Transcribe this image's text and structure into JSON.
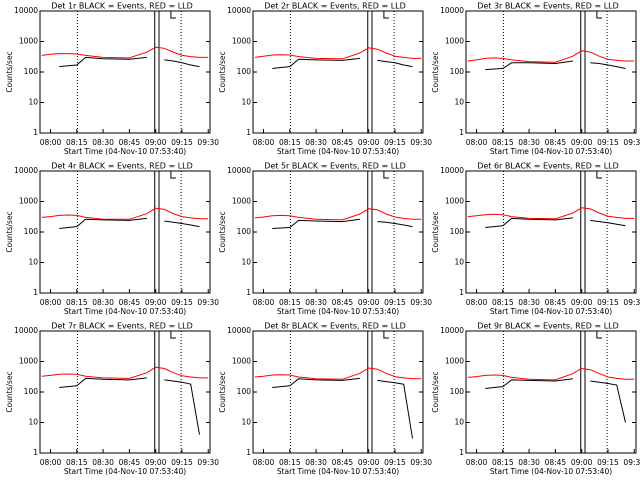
{
  "chart_data": [
    {
      "type": "line",
      "title": "Det 1r BLACK = Events, RED = LLD",
      "xlabel": "Start Time (04-Nov-10 07:53:40)",
      "ylabel": "Counts/sec",
      "log_y": true,
      "x": [
        "07:55",
        "08:00",
        "08:05",
        "08:10",
        "08:15",
        "08:20",
        "08:30",
        "08:45",
        "08:55",
        "09:00",
        "09:05",
        "09:10",
        "09:15",
        "09:20",
        "09:25",
        "09:30"
      ],
      "xlim": [
        "07:54",
        "09:31"
      ],
      "xticks": [
        "08:00",
        "08:15",
        "08:30",
        "08:45",
        "09:00",
        "09:15",
        "09:30"
      ],
      "ylim": [
        1,
        10000
      ],
      "yticks": [
        1,
        10,
        100,
        1000,
        10000
      ],
      "series": [
        {
          "color": "#000000",
          "values": [
            null,
            null,
            150,
            160,
            170,
            300,
            270,
            260,
            300,
            null,
            250,
            230,
            200,
            170,
            150,
            null
          ]
        },
        {
          "color": "#ff0000",
          "values": [
            350,
            380,
            400,
            400,
            390,
            350,
            300,
            290,
            450,
            650,
            600,
            450,
            350,
            320,
            300,
            300
          ]
        }
      ]
    },
    {
      "type": "line",
      "title": "Det 2r BLACK = Events, RED = LLD",
      "xlabel": "Start Time (04-Nov-10 07:53:40)",
      "ylabel": "Counts/sec",
      "log_y": true,
      "x": [
        "07:55",
        "08:00",
        "08:05",
        "08:10",
        "08:15",
        "08:20",
        "08:30",
        "08:45",
        "08:55",
        "09:00",
        "09:05",
        "09:10",
        "09:15",
        "09:20",
        "09:25",
        "09:30"
      ],
      "xlim": [
        "07:54",
        "09:31"
      ],
      "xticks": [
        "08:00",
        "08:15",
        "08:30",
        "08:45",
        "09:00",
        "09:15",
        "09:30"
      ],
      "ylim": [
        1,
        10000
      ],
      "yticks": [
        1,
        10,
        100,
        1000,
        10000
      ],
      "series": [
        {
          "color": "#000000",
          "values": [
            null,
            null,
            130,
            140,
            150,
            260,
            250,
            240,
            280,
            null,
            240,
            220,
            200,
            170,
            150,
            null
          ]
        },
        {
          "color": "#ff0000",
          "values": [
            300,
            330,
            360,
            370,
            360,
            320,
            280,
            270,
            420,
            620,
            560,
            420,
            330,
            300,
            280,
            280
          ]
        }
      ]
    },
    {
      "type": "line",
      "title": "Det 3r BLACK = Events, RED = LLD",
      "xlabel": "Start Time (04-Nov-10 07:53:40)",
      "ylabel": "Counts/sec",
      "log_y": true,
      "x": [
        "07:55",
        "08:00",
        "08:05",
        "08:10",
        "08:15",
        "08:20",
        "08:30",
        "08:45",
        "08:55",
        "09:00",
        "09:05",
        "09:10",
        "09:15",
        "09:20",
        "09:25",
        "09:30"
      ],
      "xlim": [
        "07:54",
        "09:31"
      ],
      "xticks": [
        "08:00",
        "08:15",
        "08:30",
        "08:45",
        "09:00",
        "09:15",
        "09:30"
      ],
      "ylim": [
        1,
        10000
      ],
      "yticks": [
        1,
        10,
        100,
        1000,
        10000
      ],
      "series": [
        {
          "color": "#000000",
          "values": [
            null,
            null,
            120,
            125,
            130,
            200,
            200,
            190,
            230,
            null,
            200,
            190,
            170,
            150,
            130,
            null
          ]
        },
        {
          "color": "#ff0000",
          "values": [
            230,
            250,
            280,
            290,
            280,
            250,
            220,
            210,
            330,
            500,
            450,
            330,
            260,
            240,
            230,
            230
          ]
        }
      ]
    },
    {
      "type": "line",
      "title": "Det 4r BLACK = Events, RED = LLD",
      "xlabel": "Start Time (04-Nov-10 07:53:40)",
      "ylabel": "Counts/sec",
      "log_y": true,
      "x": [
        "07:55",
        "08:00",
        "08:05",
        "08:10",
        "08:15",
        "08:20",
        "08:30",
        "08:45",
        "08:55",
        "09:00",
        "09:05",
        "09:10",
        "09:15",
        "09:20",
        "09:25",
        "09:30"
      ],
      "xlim": [
        "07:54",
        "09:31"
      ],
      "xticks": [
        "08:00",
        "08:15",
        "08:30",
        "08:45",
        "09:00",
        "09:15",
        "09:30"
      ],
      "ylim": [
        1,
        10000
      ],
      "yticks": [
        1,
        10,
        100,
        1000,
        10000
      ],
      "series": [
        {
          "color": "#000000",
          "values": [
            null,
            null,
            130,
            140,
            150,
            260,
            250,
            240,
            280,
            null,
            230,
            210,
            190,
            170,
            150,
            null
          ]
        },
        {
          "color": "#ff0000",
          "values": [
            300,
            320,
            350,
            360,
            350,
            300,
            260,
            260,
            400,
            600,
            550,
            400,
            320,
            290,
            270,
            270
          ]
        }
      ]
    },
    {
      "type": "line",
      "title": "Det 5r BLACK = Events, RED = LLD",
      "xlabel": "Start Time (04-Nov-10 07:53:40)",
      "ylabel": "Counts/sec",
      "log_y": true,
      "x": [
        "07:55",
        "08:00",
        "08:05",
        "08:10",
        "08:15",
        "08:20",
        "08:30",
        "08:45",
        "08:55",
        "09:00",
        "09:05",
        "09:10",
        "09:15",
        "09:20",
        "09:25",
        "09:30"
      ],
      "xlim": [
        "07:54",
        "09:31"
      ],
      "xticks": [
        "08:00",
        "08:15",
        "08:30",
        "08:45",
        "09:00",
        "09:15",
        "09:30"
      ],
      "ylim": [
        1,
        10000
      ],
      "yticks": [
        1,
        10,
        100,
        1000,
        10000
      ],
      "series": [
        {
          "color": "#000000",
          "values": [
            null,
            null,
            130,
            135,
            140,
            240,
            230,
            220,
            260,
            null,
            220,
            210,
            190,
            170,
            150,
            null
          ]
        },
        {
          "color": "#ff0000",
          "values": [
            290,
            310,
            340,
            350,
            340,
            300,
            260,
            250,
            390,
            580,
            530,
            390,
            310,
            280,
            260,
            260
          ]
        }
      ]
    },
    {
      "type": "line",
      "title": "Det 6r BLACK = Events, RED = LLD",
      "xlabel": "Start Time (04-Nov-10 07:53:40)",
      "ylabel": "Counts/sec",
      "log_y": true,
      "x": [
        "07:55",
        "08:00",
        "08:05",
        "08:10",
        "08:15",
        "08:20",
        "08:30",
        "08:45",
        "08:55",
        "09:00",
        "09:05",
        "09:10",
        "09:15",
        "09:20",
        "09:25",
        "09:30"
      ],
      "xlim": [
        "07:54",
        "09:31"
      ],
      "xticks": [
        "08:00",
        "08:15",
        "08:30",
        "08:45",
        "09:00",
        "09:15",
        "09:30"
      ],
      "ylim": [
        1,
        10000
      ],
      "yticks": [
        1,
        10,
        100,
        1000,
        10000
      ],
      "series": [
        {
          "color": "#000000",
          "values": [
            null,
            null,
            140,
            150,
            160,
            280,
            260,
            250,
            290,
            null,
            240,
            220,
            200,
            180,
            160,
            null
          ]
        },
        {
          "color": "#ff0000",
          "values": [
            320,
            340,
            370,
            380,
            370,
            320,
            280,
            270,
            420,
            620,
            570,
            420,
            330,
            300,
            280,
            280
          ]
        }
      ]
    },
    {
      "type": "line",
      "title": "Det 7r BLACK = Events, RED = LLD",
      "xlabel": "Start Time (04-Nov-10 07:53:40)",
      "ylabel": "Counts/sec",
      "log_y": true,
      "x": [
        "07:55",
        "08:00",
        "08:05",
        "08:10",
        "08:15",
        "08:20",
        "08:30",
        "08:45",
        "08:55",
        "09:00",
        "09:05",
        "09:10",
        "09:15",
        "09:20",
        "09:25",
        "09:30"
      ],
      "xlim": [
        "07:54",
        "09:31"
      ],
      "xticks": [
        "08:00",
        "08:15",
        "08:30",
        "08:45",
        "09:00",
        "09:15",
        "09:30"
      ],
      "ylim": [
        1,
        10000
      ],
      "yticks": [
        1,
        10,
        100,
        1000,
        10000
      ],
      "series": [
        {
          "color": "#000000",
          "values": [
            null,
            null,
            140,
            150,
            160,
            280,
            260,
            250,
            290,
            null,
            250,
            230,
            210,
            180,
            4,
            null
          ]
        },
        {
          "color": "#ff0000",
          "values": [
            330,
            350,
            380,
            390,
            380,
            330,
            290,
            280,
            430,
            650,
            590,
            430,
            340,
            310,
            290,
            290
          ]
        }
      ]
    },
    {
      "type": "line",
      "title": "Det 8r BLACK = Events, RED = LLD",
      "xlabel": "Start Time (04-Nov-10 07:53:40)",
      "ylabel": "Counts/sec",
      "log_y": true,
      "x": [
        "07:55",
        "08:00",
        "08:05",
        "08:10",
        "08:15",
        "08:20",
        "08:30",
        "08:45",
        "08:55",
        "09:00",
        "09:05",
        "09:10",
        "09:15",
        "09:20",
        "09:25",
        "09:30"
      ],
      "xlim": [
        "07:54",
        "09:31"
      ],
      "xticks": [
        "08:00",
        "08:15",
        "08:30",
        "08:45",
        "09:00",
        "09:15",
        "09:30"
      ],
      "ylim": [
        1,
        10000
      ],
      "yticks": [
        1,
        10,
        100,
        1000,
        10000
      ],
      "series": [
        {
          "color": "#000000",
          "values": [
            null,
            null,
            140,
            150,
            160,
            270,
            250,
            240,
            280,
            null,
            240,
            220,
            200,
            180,
            3,
            null
          ]
        },
        {
          "color": "#ff0000",
          "values": [
            310,
            330,
            360,
            370,
            360,
            310,
            270,
            260,
            410,
            610,
            560,
            410,
            320,
            290,
            270,
            270
          ]
        }
      ]
    },
    {
      "type": "line",
      "title": "Det 9r BLACK = Events, RED = LLD",
      "xlabel": "Start Time (04-Nov-10 07:53:40)",
      "ylabel": "Counts/sec",
      "log_y": true,
      "x": [
        "07:55",
        "08:00",
        "08:05",
        "08:10",
        "08:15",
        "08:20",
        "08:30",
        "08:45",
        "08:55",
        "09:00",
        "09:05",
        "09:10",
        "09:15",
        "09:20",
        "09:25",
        "09:30"
      ],
      "xlim": [
        "07:54",
        "09:31"
      ],
      "xticks": [
        "08:00",
        "08:15",
        "08:30",
        "08:45",
        "09:00",
        "09:15",
        "09:30"
      ],
      "ylim": [
        1,
        10000
      ],
      "yticks": [
        1,
        10,
        100,
        1000,
        10000
      ],
      "series": [
        {
          "color": "#000000",
          "values": [
            null,
            null,
            130,
            140,
            150,
            250,
            240,
            230,
            270,
            null,
            230,
            210,
            190,
            170,
            10,
            null
          ]
        },
        {
          "color": "#ff0000",
          "values": [
            300,
            320,
            350,
            360,
            350,
            300,
            260,
            250,
            400,
            590,
            540,
            400,
            310,
            280,
            260,
            260
          ]
        }
      ]
    }
  ]
}
